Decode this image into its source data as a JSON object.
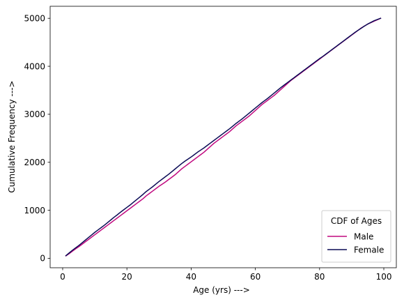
{
  "chart_data": {
    "type": "line",
    "title": "",
    "xlabel": "Age (yrs) --->",
    "ylabel": "Cumulative Frequency --->",
    "xlim": [
      -3.9,
      103.9
    ],
    "ylim": [
      -197,
      5250
    ],
    "xticks": [
      0,
      20,
      40,
      60,
      80,
      100
    ],
    "yticks": [
      0,
      1000,
      2000,
      3000,
      4000,
      5000
    ],
    "grid": false,
    "legend": {
      "title": "CDF of Ages",
      "placement": "lower-right"
    },
    "series": [
      {
        "name": "Male",
        "color": "#c0087f",
        "x": [
          1,
          2,
          3,
          4,
          5,
          6,
          7,
          8,
          9,
          10,
          11,
          12,
          13,
          14,
          15,
          16,
          17,
          18,
          19,
          20,
          21,
          22,
          23,
          24,
          25,
          26,
          27,
          28,
          29,
          30,
          31,
          32,
          33,
          34,
          35,
          36,
          37,
          38,
          39,
          40,
          41,
          42,
          43,
          44,
          45,
          46,
          47,
          48,
          49,
          50,
          51,
          52,
          53,
          54,
          55,
          56,
          57,
          58,
          59,
          60,
          61,
          62,
          63,
          64,
          65,
          66,
          67,
          68,
          69,
          70,
          71,
          72,
          73,
          74,
          75,
          76,
          77,
          78,
          79,
          80,
          81,
          82,
          83,
          84,
          85,
          86,
          87,
          88,
          89,
          90,
          91,
          92,
          93,
          94,
          95,
          96,
          97,
          98,
          99
        ],
        "y": [
          50,
          95,
          145,
          195,
          240,
          290,
          340,
          390,
          440,
          490,
          540,
          590,
          640,
          690,
          740,
          790,
          840,
          890,
          940,
          990,
          1040,
          1090,
          1140,
          1190,
          1240,
          1300,
          1350,
          1400,
          1450,
          1500,
          1545,
          1590,
          1640,
          1690,
          1740,
          1800,
          1860,
          1910,
          1960,
          2010,
          2060,
          2110,
          2160,
          2210,
          2270,
          2330,
          2390,
          2440,
          2490,
          2540,
          2590,
          2640,
          2700,
          2760,
          2810,
          2860,
          2910,
          2960,
          3020,
          3080,
          3140,
          3200,
          3250,
          3300,
          3350,
          3400,
          3460,
          3520,
          3580,
          3640,
          3700,
          3750,
          3800,
          3850,
          3900,
          3950,
          4000,
          4050,
          4100,
          4150,
          4200,
          4250,
          4300,
          4350,
          4400,
          4450,
          4500,
          4550,
          4600,
          4650,
          4700,
          4750,
          4800,
          4840,
          4880,
          4910,
          4940,
          4970,
          5000
        ]
      },
      {
        "name": "Female",
        "color": "#0a0a55",
        "x": [
          1,
          2,
          3,
          4,
          5,
          6,
          7,
          8,
          9,
          10,
          11,
          12,
          13,
          14,
          15,
          16,
          17,
          18,
          19,
          20,
          21,
          22,
          23,
          24,
          25,
          26,
          27,
          28,
          29,
          30,
          31,
          32,
          33,
          34,
          35,
          36,
          37,
          38,
          39,
          40,
          41,
          42,
          43,
          44,
          45,
          46,
          47,
          48,
          49,
          50,
          51,
          52,
          53,
          54,
          55,
          56,
          57,
          58,
          59,
          60,
          61,
          62,
          63,
          64,
          65,
          66,
          67,
          68,
          69,
          70,
          71,
          72,
          73,
          74,
          75,
          76,
          77,
          78,
          79,
          80,
          81,
          82,
          83,
          84,
          85,
          86,
          87,
          88,
          89,
          90,
          91,
          92,
          93,
          94,
          95,
          96,
          97,
          98,
          99
        ],
        "y": [
          55,
          110,
          165,
          215,
          265,
          320,
          375,
          430,
          485,
          540,
          590,
          640,
          690,
          745,
          800,
          855,
          905,
          960,
          1010,
          1060,
          1110,
          1165,
          1220,
          1275,
          1330,
          1390,
          1440,
          1490,
          1545,
          1600,
          1650,
          1700,
          1750,
          1805,
          1860,
          1915,
          1970,
          2020,
          2065,
          2110,
          2160,
          2210,
          2255,
          2300,
          2350,
          2400,
          2450,
          2500,
          2550,
          2600,
          2650,
          2700,
          2755,
          2810,
          2860,
          2910,
          2965,
          3020,
          3075,
          3130,
          3185,
          3240,
          3290,
          3340,
          3395,
          3450,
          3505,
          3560,
          3610,
          3660,
          3710,
          3760,
          3810,
          3860,
          3910,
          3960,
          4010,
          4060,
          4110,
          4160,
          4205,
          4255,
          4305,
          4355,
          4405,
          4455,
          4505,
          4555,
          4605,
          4655,
          4705,
          4750,
          4795,
          4840,
          4880,
          4915,
          4950,
          4975,
          5000
        ]
      }
    ]
  }
}
